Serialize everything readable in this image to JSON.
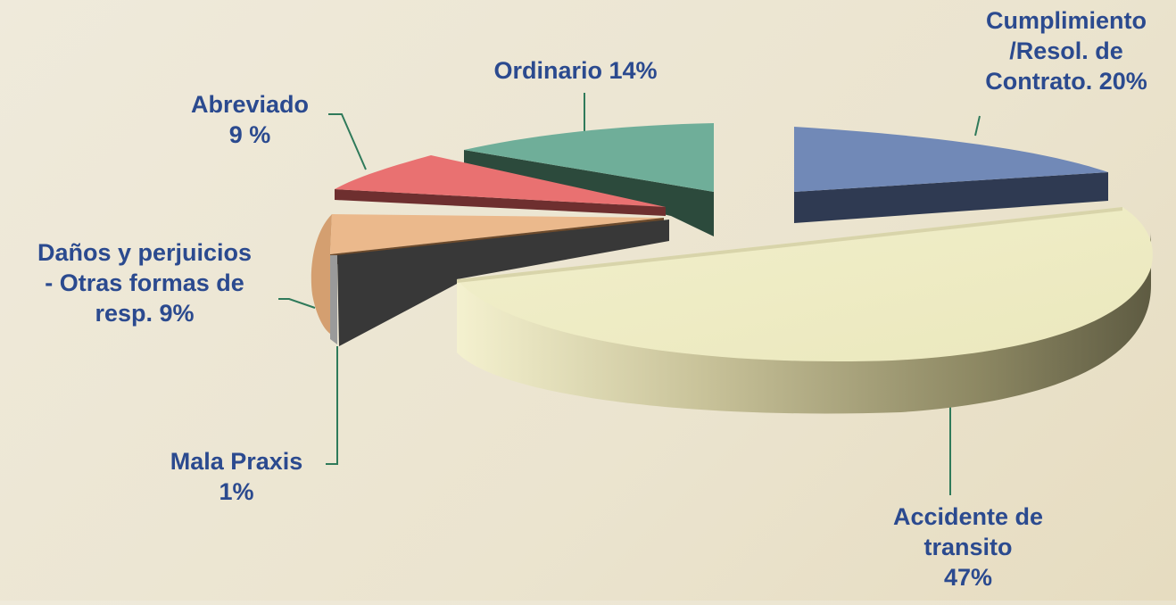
{
  "chart_data": {
    "type": "pie",
    "style": "3d-exploded",
    "slices": [
      {
        "name": "Cumplimiento /Resol. de Contrato.",
        "value": 20,
        "color": "#7189b7",
        "label_lines": [
          "Cumplimiento",
          "/Resol. de",
          "Contrato. 20%"
        ]
      },
      {
        "name": "Accidente de transito",
        "value": 47,
        "color": "#eeecc2",
        "label_lines": [
          "Accidente de",
          "transito",
          "47%"
        ]
      },
      {
        "name": "Mala Praxis",
        "value": 1,
        "color": "#9a9a9a",
        "label_lines": [
          "Mala Praxis",
          "1%"
        ]
      },
      {
        "name": "Daños y perjuicios - Otras formas de resp.",
        "value": 9,
        "color": "#ebb98c",
        "label_lines": [
          "Daños y perjuicios",
          "- Otras formas de",
          "resp. 9%"
        ]
      },
      {
        "name": "Abreviado",
        "value": 9,
        "color": "#e97171",
        "label_lines": [
          "Abreviado",
          "9 %"
        ]
      },
      {
        "name": "Ordinario",
        "value": 14,
        "color": "#6fae99",
        "label_lines": [
          "Ordinario 14%"
        ]
      }
    ],
    "label_color": "#2b4a8f"
  }
}
